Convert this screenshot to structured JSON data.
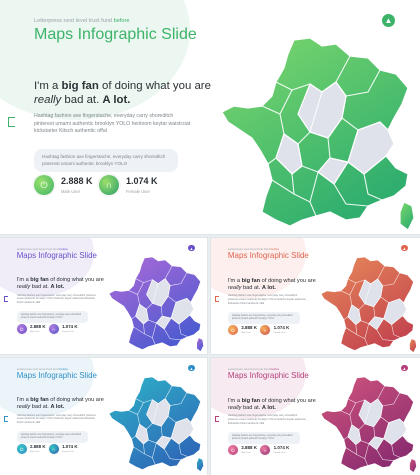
{
  "slides": [
    {
      "eyebrow_pre": "Letterpress next level trust fund",
      "eyebrow_hl": "before",
      "title": "Maps Infographic Slide",
      "headline_pre": "I'm a ",
      "headline_b1": "big fan",
      "headline_mid": " of doing what you are ",
      "headline_i": "really",
      "headline_post": " bad at. ",
      "headline_b2": "A lot.",
      "body": "Hashtag fashion axe fingerstache, everyday carry shoreditch pinterest umami authentic brooklyn YOLO heirloom keytar waistcoat kickstarter Kitsch authentic offal",
      "quote": "Hashtag fashion axe fingerstache, everyday carry shoreditch pinterest umami authentic brooklyn YOLO",
      "stat1_value": "2.888 K",
      "stat1_label": "Male User",
      "stat2_value": "1.074 K",
      "stat2_label": "Female User"
    }
  ],
  "themes": [
    {
      "name": "green",
      "accent": "#3db36a",
      "light": "#9be06a",
      "dark": "#2a9d6b",
      "map_top": "#7ed86c",
      "map_bottom": "#2fae6e"
    },
    {
      "name": "purple",
      "accent": "#6a4fc9",
      "light": "#b07ae0",
      "dark": "#4f56c8",
      "map_top": "#b06ad8",
      "map_bottom": "#4e5bd0"
    },
    {
      "name": "coral",
      "accent": "#e0654f",
      "light": "#f5b25a",
      "dark": "#c94a4a",
      "map_top": "#e88a5a",
      "map_bottom": "#c4464f"
    },
    {
      "name": "teal",
      "accent": "#2f8fc7",
      "light": "#35c4c4",
      "dark": "#2a5fae",
      "map_top": "#2fb3c8",
      "map_bottom": "#2d6ab8"
    },
    {
      "name": "magenta",
      "accent": "#b43f7a",
      "light": "#ef7aa0",
      "dark": "#8c2f74",
      "map_top": "#d2557d",
      "map_bottom": "#8c2d70"
    }
  ],
  "icons": {
    "logo": "brand-logo-icon",
    "stat1": "power-icon",
    "stat2": "magnet-icon"
  }
}
